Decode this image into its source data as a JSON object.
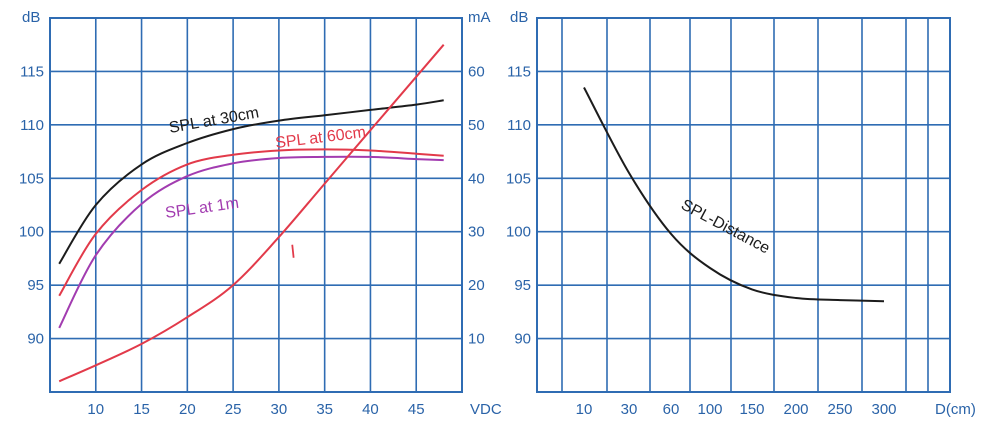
{
  "colors": {
    "grid": "#2f6cb3",
    "tick_text": "#2a63a8",
    "spl_30cm": "#1c1c1c",
    "spl_60cm": "#e23a4a",
    "spl_1m": "#a23cb0",
    "current": "#e23a4a",
    "spl_distance": "#1c1c1c"
  },
  "chart_data": [
    {
      "type": "line",
      "x_unit": "VDC",
      "y_left_unit": "dB",
      "y_right_unit": "mA",
      "x_ticks": [
        10,
        15,
        20,
        25,
        30,
        35,
        40,
        45
      ],
      "y_left_ticks": [
        90,
        95,
        100,
        105,
        110,
        115
      ],
      "y_right_ticks": [
        10,
        20,
        30,
        40,
        50,
        60
      ],
      "xlim": [
        5,
        50
      ],
      "ylim_left": [
        85,
        120
      ],
      "ylim_right": [
        0,
        70
      ],
      "grid": true,
      "series": [
        {
          "name": "SPL at 30cm",
          "axis": "left",
          "color_key": "spl_30cm",
          "x": [
            6,
            10,
            15,
            20,
            25,
            30,
            35,
            40,
            45,
            48
          ],
          "y": [
            97,
            102.5,
            106.3,
            108.3,
            109.6,
            110.4,
            110.9,
            111.4,
            111.9,
            112.3
          ]
        },
        {
          "name": "SPL at 60cm",
          "axis": "left",
          "color_key": "spl_60cm",
          "x": [
            6,
            10,
            15,
            20,
            25,
            30,
            35,
            40,
            45,
            48
          ],
          "y": [
            94,
            99.8,
            103.9,
            106.3,
            107.2,
            107.6,
            107.7,
            107.6,
            107.3,
            107.1
          ]
        },
        {
          "name": "SPL at 1m",
          "axis": "left",
          "color_key": "spl_1m",
          "x": [
            6,
            10,
            15,
            20,
            25,
            30,
            35,
            40,
            45,
            48
          ],
          "y": [
            91,
            97.8,
            102.6,
            105.2,
            106.4,
            106.9,
            107.0,
            107.0,
            106.8,
            106.7
          ]
        },
        {
          "name": "I",
          "axis": "right",
          "color_key": "current",
          "x": [
            6,
            10,
            15,
            20,
            25,
            30,
            35,
            40,
            45,
            48
          ],
          "y": [
            2,
            5,
            9,
            14,
            20,
            29,
            39,
            49,
            59,
            65
          ]
        }
      ],
      "annotations": [
        {
          "text": "SPL at 30cm",
          "color_key": "spl_30cm",
          "series": 0
        },
        {
          "text": "SPL at 60cm",
          "color_key": "spl_60cm",
          "series": 1
        },
        {
          "text": "SPL at 1m",
          "color_key": "spl_1m",
          "series": 2
        },
        {
          "text": "I",
          "color_key": "current",
          "series": 3
        }
      ]
    },
    {
      "type": "line",
      "x_unit": "D(cm)",
      "y_unit": "dB",
      "x_ticks": [
        10,
        30,
        60,
        100,
        150,
        200,
        250,
        300
      ],
      "y_ticks": [
        90,
        95,
        100,
        105,
        110,
        115
      ],
      "ylim": [
        85,
        120
      ],
      "grid": true,
      "series": [
        {
          "name": "SPL-Distance",
          "color_key": "spl_distance",
          "x": [
            10,
            30,
            60,
            100,
            150,
            200,
            250,
            300
          ],
          "y": [
            113.5,
            105.5,
            99.8,
            96.6,
            94.6,
            93.8,
            93.6,
            93.5
          ]
        }
      ],
      "annotations": [
        {
          "text": "SPL-Distance",
          "color_key": "spl_distance",
          "series": 0
        }
      ]
    }
  ]
}
